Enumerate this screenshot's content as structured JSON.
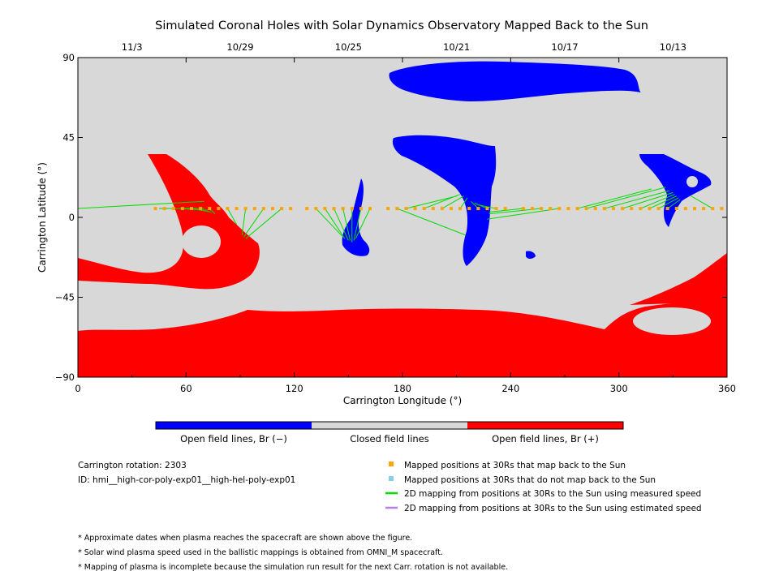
{
  "chart_data": {
    "type": "map",
    "title": "Simulated Coronal Holes with Solar Dynamics Observatory Mapped Back to the Sun",
    "xlabel": "Carrington Longitude (°)",
    "ylabel": "Carrington Latitude (°)",
    "xlim": [
      0,
      360
    ],
    "ylim": [
      -90,
      90
    ],
    "x_ticks": [
      0,
      60,
      120,
      180,
      240,
      300,
      360
    ],
    "y_ticks": [
      -90,
      -45,
      0,
      45,
      90
    ],
    "y_tick_labels": [
      "−90",
      "−45",
      "0",
      "45",
      "90"
    ],
    "top_axis": {
      "labels": [
        "11/3",
        "10/29",
        "10/25",
        "10/21",
        "10/17",
        "10/13"
      ],
      "longitudes": [
        30,
        90,
        150,
        210,
        270,
        330
      ]
    },
    "colors": {
      "open_negative": "#0000ff",
      "closed": "#d8d8d8",
      "open_positive": "#ff0000",
      "mapped_point": "#ffa500",
      "unmapped_point": "#87ceeb",
      "measured_line": "#00dd00",
      "estimated_line": "#b57fe6"
    },
    "mapped_points_lon": [
      43,
      48,
      53,
      58,
      63,
      68,
      73,
      78,
      83,
      88,
      93,
      98,
      103,
      108,
      113,
      118,
      127,
      132,
      137,
      142,
      147,
      152,
      157,
      162,
      172,
      177,
      182,
      187,
      192,
      197,
      202,
      207,
      212,
      217,
      222,
      227,
      232,
      237,
      247,
      252,
      257,
      262,
      267,
      272,
      277,
      282,
      287,
      292,
      297,
      302,
      307,
      312,
      317,
      322,
      327,
      332,
      337,
      342,
      347,
      352,
      357
    ],
    "mapped_points_lat": 5,
    "mappings_measured": [
      {
        "from": 0,
        "to": [
          70,
          9
        ]
      },
      {
        "from": 45,
        "to": [
          70,
          5
        ]
      },
      {
        "from": 55,
        "to": [
          72,
          4
        ]
      },
      {
        "from": 63,
        "to": [
          74,
          3
        ]
      },
      {
        "from": 73,
        "to": [
          76,
          2
        ]
      },
      {
        "from": 83,
        "to": [
          88,
          -4
        ]
      },
      {
        "from": 93,
        "to": [
          91,
          -10
        ]
      },
      {
        "from": 103,
        "to": [
          92,
          -11
        ]
      },
      {
        "from": 113,
        "to": [
          93,
          -12
        ]
      },
      {
        "from": 132,
        "to": [
          147,
          -11
        ]
      },
      {
        "from": 137,
        "to": [
          148,
          -12
        ]
      },
      {
        "from": 142,
        "to": [
          150,
          -13
        ]
      },
      {
        "from": 147,
        "to": [
          151,
          -13
        ]
      },
      {
        "from": 152,
        "to": [
          152,
          -14
        ]
      },
      {
        "from": 157,
        "to": [
          153,
          -13
        ]
      },
      {
        "from": 162,
        "to": [
          154,
          -12
        ]
      },
      {
        "from": 177,
        "to": [
          215,
          -10
        ]
      },
      {
        "from": 182,
        "to": [
          210,
          12
        ]
      },
      {
        "from": 192,
        "to": [
          212,
          13
        ]
      },
      {
        "from": 202,
        "to": [
          214,
          12
        ]
      },
      {
        "from": 212,
        "to": [
          216,
          11
        ]
      },
      {
        "from": 222,
        "to": [
          218,
          9
        ]
      },
      {
        "from": 227,
        "to": [
          220,
          8
        ]
      },
      {
        "from": 232,
        "to": [
          222,
          7
        ]
      },
      {
        "from": 247,
        "to": [
          228,
          3
        ]
      },
      {
        "from": 257,
        "to": [
          228,
          2
        ]
      },
      {
        "from": 267,
        "to": [
          227,
          -1
        ]
      },
      {
        "from": 277,
        "to": [
          318,
          16
        ]
      },
      {
        "from": 282,
        "to": [
          326,
          17
        ]
      },
      {
        "from": 292,
        "to": [
          328,
          15
        ]
      },
      {
        "from": 302,
        "to": [
          330,
          14
        ]
      },
      {
        "from": 312,
        "to": [
          331,
          13
        ]
      },
      {
        "from": 317,
        "to": [
          332,
          12
        ]
      },
      {
        "from": 322,
        "to": [
          333,
          11
        ]
      },
      {
        "from": 327,
        "to": [
          334,
          10
        ]
      },
      {
        "from": 352,
        "to": [
          340,
          12
        ]
      }
    ]
  },
  "colorbar": {
    "labels": [
      "Open field lines, Br (−)",
      "Closed field lines",
      "Open field lines, Br (+)"
    ]
  },
  "info": {
    "rotation": "Carrington rotation: 2303",
    "id": "ID: hmi__high-cor-poly-exp01__high-hel-poly-exp01"
  },
  "legend": [
    {
      "label": "Mapped positions at 30Rs that map back to the Sun",
      "kind": "square",
      "color": "#ffa500"
    },
    {
      "label": "Mapped positions at 30Rs that do not map back to the Sun",
      "kind": "square",
      "color": "#87ceeb"
    },
    {
      "label": "2D mapping from positions at 30Rs to the Sun using measured speed",
      "kind": "line",
      "color": "#00dd00"
    },
    {
      "label": "2D mapping from positions at 30Rs to the Sun using estimated speed",
      "kind": "line",
      "color": "#b57fe6"
    }
  ],
  "footnotes": [
    "* Approximate dates when plasma reaches the spacecraft are shown above the figure.",
    "* Solar wind plasma speed used in the ballistic mappings is obtained from OMNI_M spacecraft.",
    "* Mapping of plasma is incomplete because the simulation run result for the next Carr. rotation is not available."
  ]
}
